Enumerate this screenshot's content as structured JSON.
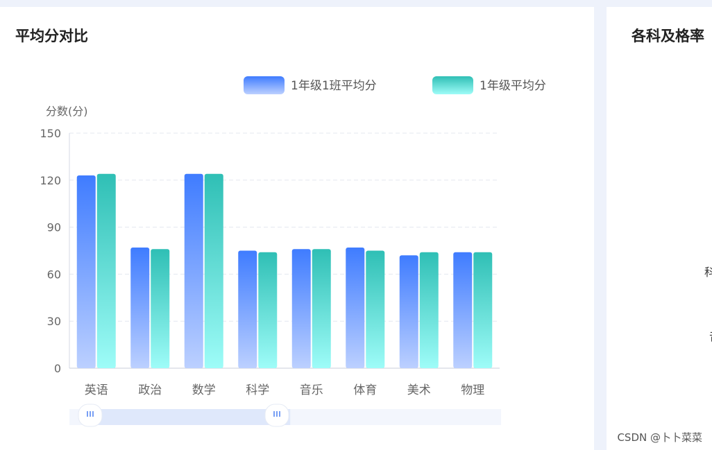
{
  "left_panel": {
    "title": "平均分对比"
  },
  "right_panel": {
    "title": "各科及格率",
    "partial_labels": [
      "科",
      "音"
    ]
  },
  "watermark": "CSDN @卜卜菜菜",
  "colors": {
    "series1_top": "#3f7cff",
    "series1_bottom": "#bcd0ff",
    "series2_top": "#2fbfb5",
    "series2_bottom": "#9efcf8",
    "grid": "#e3e7ef",
    "axis_text": "#666666"
  },
  "chart_data": {
    "type": "bar",
    "title": "",
    "ylabel": "分数(分)",
    "xlabel": "",
    "ylim": [
      0,
      150
    ],
    "yticks": [
      0,
      30,
      60,
      90,
      120,
      150
    ],
    "categories": [
      "英语",
      "政治",
      "数学",
      "科学",
      "音乐",
      "体育",
      "美术",
      "物理"
    ],
    "series": [
      {
        "name": "1年级1班平均分",
        "values": [
          123,
          77,
          124,
          75,
          76,
          77,
          72,
          74
        ]
      },
      {
        "name": "1年级平均分",
        "values": [
          124,
          76,
          124,
          74,
          76,
          75,
          74,
          74
        ]
      }
    ],
    "legend": "top-right",
    "grid": true,
    "datazoom": {
      "start_percent": 0,
      "end_percent": 51
    }
  }
}
